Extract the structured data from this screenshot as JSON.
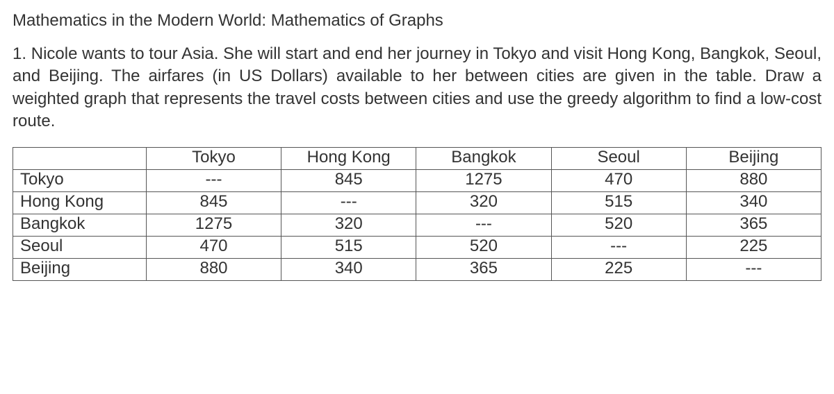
{
  "heading": "Mathematics in the Modern World: Mathematics of Graphs",
  "body": "1. Nicole wants to tour Asia. She will start and end her journey in Tokyo and visit Hong Kong, Bangkok, Seoul, and Beijing. The airfares (in US Dollars) available to her between cities are given in the table. Draw a weighted graph that represents the travel costs between cities and use the greedy algorithm to find a low-cost route.",
  "table": {
    "type": "table",
    "columns": [
      "",
      "Tokyo",
      "Hong Kong",
      "Bangkok",
      "Seoul",
      "Beijing"
    ],
    "rows": [
      {
        "label": "Tokyo",
        "cells": [
          "---",
          "845",
          "1275",
          "470",
          "880"
        ]
      },
      {
        "label": "Hong Kong",
        "cells": [
          "845",
          "---",
          "320",
          "515",
          "340"
        ]
      },
      {
        "label": "Bangkok",
        "cells": [
          "1275",
          "320",
          "---",
          "520",
          "365"
        ]
      },
      {
        "label": "Seoul",
        "cells": [
          "470",
          "515",
          "520",
          "---",
          "225"
        ]
      },
      {
        "label": "Beijing",
        "cells": [
          "880",
          "340",
          "365",
          "225",
          "---"
        ]
      }
    ],
    "border_color": "#555555",
    "background_color": "#ffffff",
    "font_size_pt": 18,
    "cell_text_color": "#333333"
  }
}
